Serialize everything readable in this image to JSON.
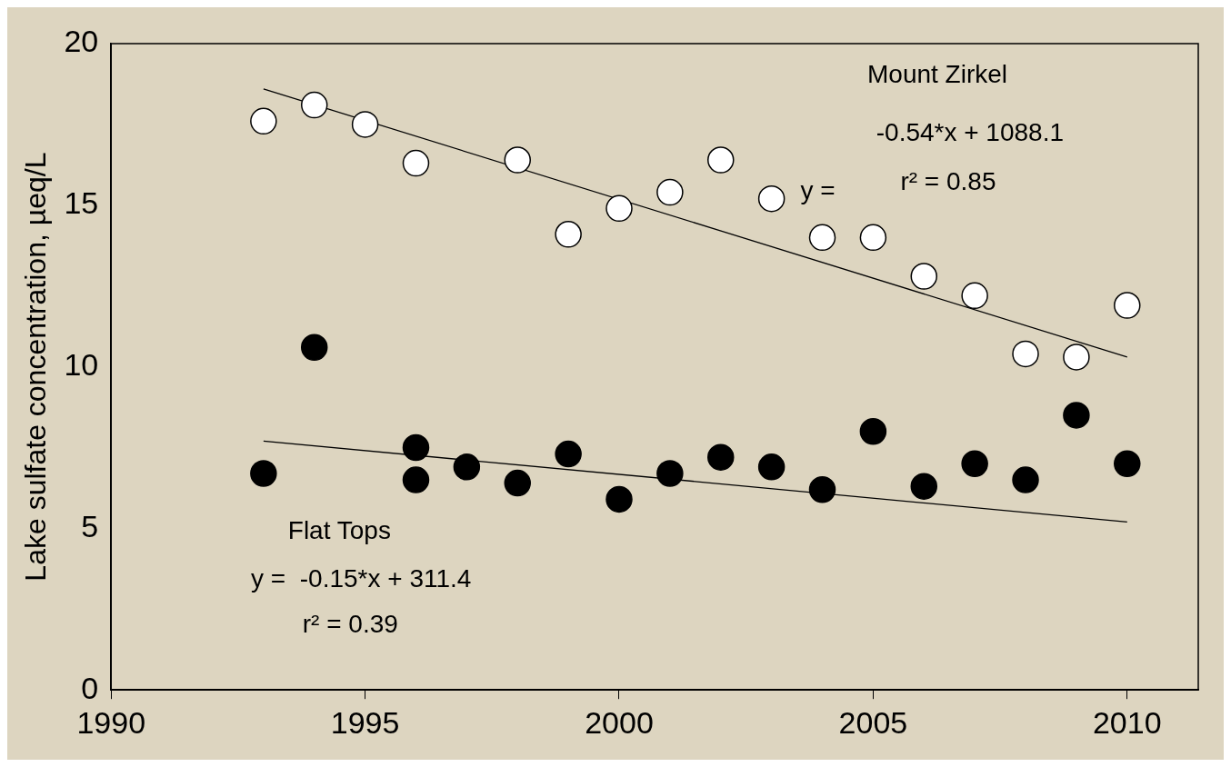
{
  "chart_data": {
    "type": "scatter",
    "ylabel": "Lake sulfate concentration, µeq/L",
    "xlim": [
      1990,
      2011.4
    ],
    "ylim": [
      0,
      20
    ],
    "xticks": [
      1990,
      1995,
      2000,
      2005,
      2010
    ],
    "yticks": [
      0,
      5,
      10,
      15,
      20
    ],
    "grid": false,
    "legend": false,
    "marker": "circle",
    "series": [
      {
        "color": "#ffffff",
        "x": [
          1993,
          1994,
          1995,
          1996,
          1998,
          1999,
          2000,
          2001,
          2002,
          2003,
          2004,
          2005,
          2006,
          2007,
          2008,
          2009,
          2010
        ],
        "values": [
          17.6,
          18.1,
          17.5,
          16.3,
          16.4,
          14.1,
          14.9,
          15.4,
          16.4,
          15.2,
          14.0,
          14.0,
          12.8,
          12.2,
          10.4,
          10.3,
          11.9
        ]
      },
      {
        "color": "#000000",
        "x": [
          1993,
          1994,
          1996,
          1996,
          1997,
          1998,
          1999,
          2000,
          2001,
          2002,
          2003,
          2004,
          2005,
          2006,
          2007,
          2008,
          2009,
          2010
        ],
        "values": [
          6.7,
          10.6,
          7.5,
          6.5,
          6.9,
          6.4,
          7.3,
          5.9,
          6.7,
          7.2,
          6.9,
          6.2,
          8.0,
          6.3,
          7.0,
          6.5,
          8.5,
          7.0
        ]
      },
      {
        "type": "line",
        "marker": "none",
        "color": "#000000",
        "x": [
          1993,
          2010
        ],
        "values": [
          18.6,
          10.3
        ]
      },
      {
        "type": "line",
        "marker": "none",
        "color": "#000000",
        "x": [
          1993,
          2010
        ],
        "values": [
          7.7,
          5.2
        ]
      }
    ],
    "annotations": [
      "Mount Zirkel",
      "y =",
      "-0.54*x + 1088.1",
      "r² = 0.85",
      "Flat Tops",
      "y =  -0.15*x + 311.4",
      "r² = 0.39"
    ]
  }
}
